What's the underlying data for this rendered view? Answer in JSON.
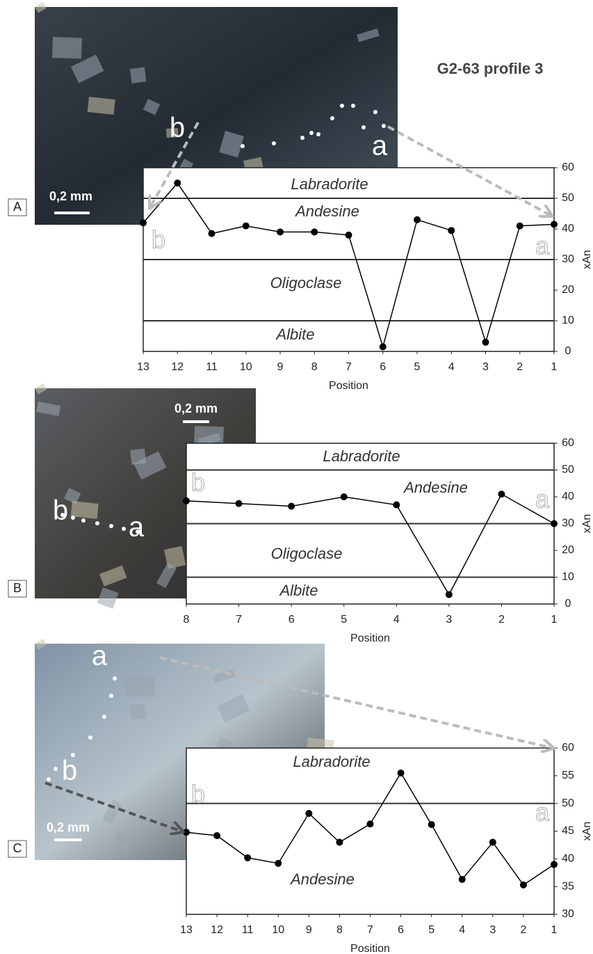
{
  "chart_data": [
    {
      "type": "line",
      "panel": "A",
      "title": "G2-63 profile 3",
      "scale_bar": "0,2 mm",
      "start_label": "b",
      "end_label": "a",
      "x": [
        13,
        12,
        11,
        10,
        9,
        8,
        7,
        6,
        5,
        4,
        3,
        2,
        1
      ],
      "values": [
        42,
        55,
        38.5,
        41,
        39,
        39,
        38,
        1.5,
        43,
        39.5,
        3,
        41,
        41.5
      ],
      "xlim": [
        13,
        1
      ],
      "xticks": [
        13,
        12,
        11,
        10,
        9,
        8,
        7,
        6,
        5,
        4,
        3,
        2,
        1
      ],
      "ylim": [
        0,
        60
      ],
      "yticks": [
        0,
        10,
        20,
        30,
        40,
        50,
        60
      ],
      "boundaries": [
        50,
        30,
        10
      ],
      "zones": [
        "Labradorite",
        "Andesine",
        "Oligoclase",
        "Albite"
      ],
      "x_label": "Position",
      "y_label": "xAn",
      "color": "#000000"
    },
    {
      "type": "line",
      "panel": "B",
      "scale_bar": "0,2 mm",
      "start_label": "b",
      "end_label": "a",
      "x": [
        8,
        7,
        6,
        5,
        4,
        3,
        2,
        1
      ],
      "values": [
        38.5,
        37.5,
        36.5,
        40,
        37,
        3.5,
        41,
        30
      ],
      "xlim": [
        8,
        1
      ],
      "xticks": [
        8,
        7,
        6,
        5,
        4,
        3,
        2,
        1
      ],
      "ylim": [
        0,
        60
      ],
      "yticks": [
        0,
        10,
        20,
        30,
        40,
        50,
        60
      ],
      "boundaries": [
        50,
        30,
        10
      ],
      "zones": [
        "Labradorite",
        "Andesine",
        "Oligoclase",
        "Albite"
      ],
      "x_label": "Position",
      "y_label": "xAn",
      "color": "#000000"
    },
    {
      "type": "line",
      "panel": "C",
      "scale_bar": "0,2 mm",
      "start_label": "b",
      "end_label": "a",
      "x": [
        13,
        12,
        11,
        10,
        9,
        8,
        7,
        6,
        5,
        4,
        3,
        2,
        1
      ],
      "values": [
        44.8,
        44.2,
        40.2,
        39.2,
        48.2,
        43,
        46.3,
        55.5,
        46.2,
        36.3,
        43,
        35.3,
        39
      ],
      "xlim": [
        13,
        1
      ],
      "xticks": [
        13,
        12,
        11,
        10,
        9,
        8,
        7,
        6,
        5,
        4,
        3,
        2,
        1
      ],
      "ylim": [
        30,
        60
      ],
      "yticks": [
        30,
        35,
        40,
        45,
        50,
        55,
        60
      ],
      "boundaries": [
        50
      ],
      "zones": [
        "Labradorite",
        "Andesine"
      ],
      "x_label": "Position",
      "y_label": "xAn",
      "color": "#000000"
    }
  ]
}
